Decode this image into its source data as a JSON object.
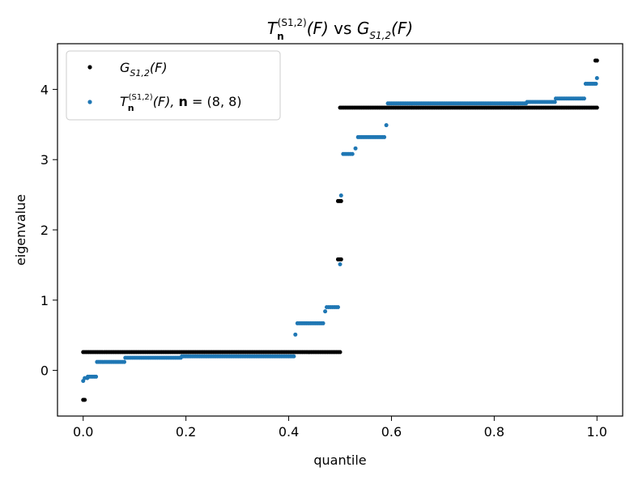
{
  "chart_data": {
    "type": "scatter",
    "title": {
      "main": "T",
      "main_sub": "n",
      "main_sup": "(S1,2)",
      "arg1": "(F)",
      "vs": " vs ",
      "g": "G",
      "g_sub": "S1,2",
      "arg2": "(F)"
    },
    "xlabel": "quantile",
    "ylabel": "eigenvalue",
    "xlim": [
      -0.05,
      1.05
    ],
    "ylim": [
      -0.65,
      4.65
    ],
    "xticks": [
      0.0,
      0.2,
      0.4,
      0.6,
      0.8,
      1.0
    ],
    "xtick_labels": [
      "0.0",
      "0.2",
      "0.4",
      "0.6",
      "0.8",
      "1.0"
    ],
    "yticks": [
      0,
      1,
      2,
      3,
      4
    ],
    "ytick_labels": [
      "0",
      "1",
      "2",
      "3",
      "4"
    ],
    "grid": false,
    "legend_position": "upper-left",
    "legend": {
      "entry1": {
        "g": "G",
        "sub": "S1,2",
        "arg": "(F)"
      },
      "entry2": {
        "t": "T",
        "sub": "n",
        "sup": "(S1,2)",
        "arg": "(F), ",
        "n_bold": "n",
        "eq": " = (8, 8)"
      }
    },
    "series": [
      {
        "color": "#000000",
        "segments": [
          {
            "x0": 0.0,
            "x1": 0.003,
            "y": -0.42
          },
          {
            "x0": 0.0,
            "x1": 0.5,
            "y": 0.26
          },
          {
            "x0": 0.496,
            "x1": 0.502,
            "y": 1.58
          },
          {
            "x0": 0.496,
            "x1": 0.502,
            "y": 2.41
          },
          {
            "x0": 0.5,
            "x1": 1.0,
            "y": 3.74
          },
          {
            "x0": 0.997,
            "x1": 1.0,
            "y": 4.41
          }
        ]
      },
      {
        "color": "#1f77b4",
        "segments": [
          {
            "x0": 0.0,
            "x1": 0.001,
            "y": -0.15
          },
          {
            "x0": 0.003,
            "x1": 0.008,
            "y": -0.11
          },
          {
            "x0": 0.009,
            "x1": 0.025,
            "y": -0.09
          },
          {
            "x0": 0.027,
            "x1": 0.08,
            "y": 0.12
          },
          {
            "x0": 0.082,
            "x1": 0.19,
            "y": 0.18
          },
          {
            "x0": 0.192,
            "x1": 0.41,
            "y": 0.2
          },
          {
            "x0": 0.413,
            "x1": 0.413,
            "y": 0.51
          },
          {
            "x0": 0.417,
            "x1": 0.467,
            "y": 0.67
          },
          {
            "x0": 0.471,
            "x1": 0.471,
            "y": 0.84
          },
          {
            "x0": 0.474,
            "x1": 0.496,
            "y": 0.9
          },
          {
            "x0": 0.5,
            "x1": 0.5,
            "y": 1.51
          },
          {
            "x0": 0.502,
            "x1": 0.502,
            "y": 2.49
          },
          {
            "x0": 0.506,
            "x1": 0.524,
            "y": 3.08
          },
          {
            "x0": 0.53,
            "x1": 0.53,
            "y": 3.16
          },
          {
            "x0": 0.535,
            "x1": 0.586,
            "y": 3.32
          },
          {
            "x0": 0.59,
            "x1": 0.59,
            "y": 3.49
          },
          {
            "x0": 0.593,
            "x1": 0.862,
            "y": 3.8
          },
          {
            "x0": 0.864,
            "x1": 0.918,
            "y": 3.82
          },
          {
            "x0": 0.92,
            "x1": 0.975,
            "y": 3.87
          },
          {
            "x0": 0.978,
            "x1": 0.998,
            "y": 4.08
          },
          {
            "x0": 1.0,
            "x1": 1.0,
            "y": 4.16
          }
        ]
      }
    ]
  }
}
